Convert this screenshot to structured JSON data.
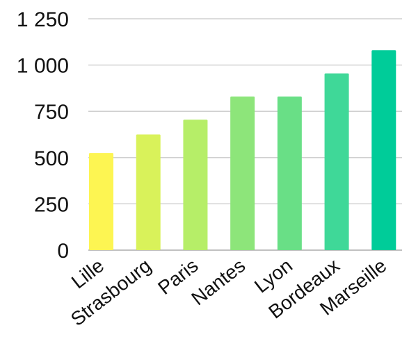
{
  "chart_data": {
    "type": "bar",
    "title": "",
    "xlabel": "",
    "ylabel": "",
    "categories": [
      "Lille",
      "Strasbourg",
      "Paris",
      "Nantes",
      "Lyon",
      "Bordeaux",
      "Marseille"
    ],
    "values": [
      525,
      625,
      705,
      830,
      830,
      955,
      1080
    ],
    "ylim": [
      0,
      1250
    ],
    "yticks": [
      0,
      250,
      500,
      750,
      1000,
      1250
    ],
    "ytick_labels": [
      "0",
      "250",
      "500",
      "750",
      "1 000",
      "1 250"
    ],
    "bar_colors": [
      "#fdf552",
      "#d9f25a",
      "#b6ee68",
      "#8de57a",
      "#69df86",
      "#3fd898",
      "#00cc99"
    ],
    "grid": true,
    "legend": "none"
  }
}
